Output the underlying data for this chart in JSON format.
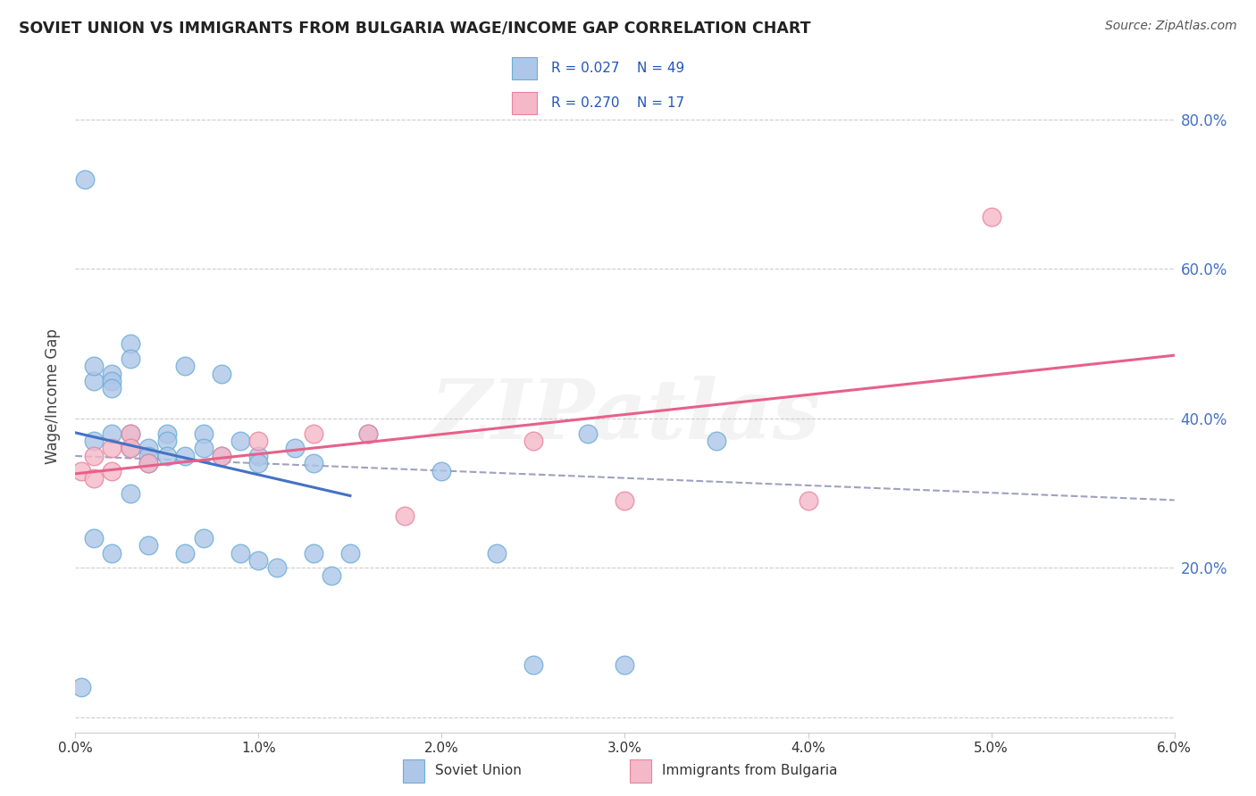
{
  "title": "SOVIET UNION VS IMMIGRANTS FROM BULGARIA WAGE/INCOME GAP CORRELATION CHART",
  "source": "Source: ZipAtlas.com",
  "ylabel": "Wage/Income Gap",
  "xlim": [
    0.0,
    0.06
  ],
  "ylim": [
    -0.02,
    0.88
  ],
  "blue_R": 0.027,
  "blue_N": 49,
  "pink_R": 0.27,
  "pink_N": 17,
  "soviet_x": [
    0.0003,
    0.0005,
    0.001,
    0.001,
    0.001,
    0.001,
    0.002,
    0.002,
    0.002,
    0.002,
    0.002,
    0.003,
    0.003,
    0.003,
    0.003,
    0.003,
    0.004,
    0.004,
    0.004,
    0.004,
    0.005,
    0.005,
    0.005,
    0.006,
    0.006,
    0.006,
    0.007,
    0.007,
    0.007,
    0.008,
    0.008,
    0.009,
    0.009,
    0.01,
    0.01,
    0.01,
    0.011,
    0.012,
    0.013,
    0.013,
    0.014,
    0.015,
    0.016,
    0.02,
    0.023,
    0.025,
    0.028,
    0.03,
    0.035
  ],
  "soviet_y": [
    0.04,
    0.72,
    0.45,
    0.47,
    0.37,
    0.24,
    0.46,
    0.45,
    0.44,
    0.38,
    0.22,
    0.5,
    0.48,
    0.38,
    0.36,
    0.3,
    0.36,
    0.35,
    0.34,
    0.23,
    0.38,
    0.37,
    0.35,
    0.47,
    0.35,
    0.22,
    0.38,
    0.36,
    0.24,
    0.46,
    0.35,
    0.37,
    0.22,
    0.35,
    0.34,
    0.21,
    0.2,
    0.36,
    0.34,
    0.22,
    0.19,
    0.22,
    0.38,
    0.33,
    0.22,
    0.07,
    0.38,
    0.07,
    0.37
  ],
  "bulgaria_x": [
    0.0003,
    0.001,
    0.001,
    0.002,
    0.002,
    0.003,
    0.003,
    0.004,
    0.008,
    0.01,
    0.013,
    0.016,
    0.018,
    0.025,
    0.03,
    0.04,
    0.05
  ],
  "bulgaria_y": [
    0.33,
    0.35,
    0.32,
    0.36,
    0.33,
    0.38,
    0.36,
    0.34,
    0.35,
    0.37,
    0.38,
    0.38,
    0.27,
    0.37,
    0.29,
    0.29,
    0.67
  ],
  "background_color": "#ffffff",
  "blue_color": "#aec6e8",
  "blue_edge": "#6aaed6",
  "blue_line": "#4472c4",
  "pink_color": "#f4b8c8",
  "pink_edge": "#e8839d",
  "pink_line": "#e8608a",
  "trend_line_color": "#a0a0c0",
  "grid_color": "#cccccc",
  "watermark_text": "ZIPatlas"
}
